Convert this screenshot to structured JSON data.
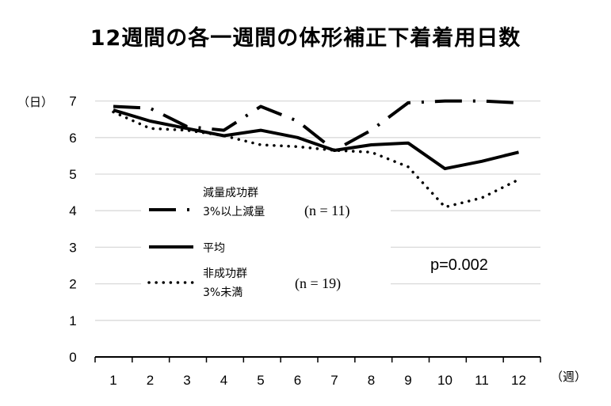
{
  "chart_data": {
    "type": "line",
    "title": "12週間の各一週間の体形補正下着着用日数",
    "ylabel": "（日）",
    "xlabel": "（週）",
    "x": [
      1,
      2,
      3,
      4,
      5,
      6,
      7,
      8,
      9,
      10,
      11,
      12
    ],
    "ylim": [
      0,
      7
    ],
    "yticks": [
      0,
      1,
      2,
      3,
      4,
      5,
      6,
      7
    ],
    "grid": "horizontal",
    "series": [
      {
        "key": "success",
        "name_lines": [
          "減量成功群",
          "3%以上減量"
        ],
        "n_label": "(n = 11)",
        "style": "dash-dot",
        "values": [
          6.85,
          6.8,
          6.3,
          6.2,
          6.85,
          6.45,
          5.65,
          6.2,
          6.95,
          7.0,
          7.0,
          6.95
        ]
      },
      {
        "key": "mean",
        "name_lines": [
          "平均"
        ],
        "n_label": "",
        "style": "solid",
        "values": [
          6.75,
          6.45,
          6.25,
          6.05,
          6.2,
          6.0,
          5.65,
          5.8,
          5.85,
          5.15,
          5.35,
          5.6
        ]
      },
      {
        "key": "nonsuccess",
        "name_lines": [
          "非成功群",
          "3%未満"
        ],
        "n_label": "(n = 19)",
        "style": "dotted",
        "values": [
          6.7,
          6.25,
          6.2,
          6.05,
          5.8,
          5.75,
          5.65,
          5.6,
          5.2,
          4.1,
          4.35,
          4.85
        ]
      }
    ],
    "annotation": "p=0.002"
  },
  "colors": {
    "line": "#000000",
    "grid": "#d9d9d9",
    "axis": "#000000"
  }
}
